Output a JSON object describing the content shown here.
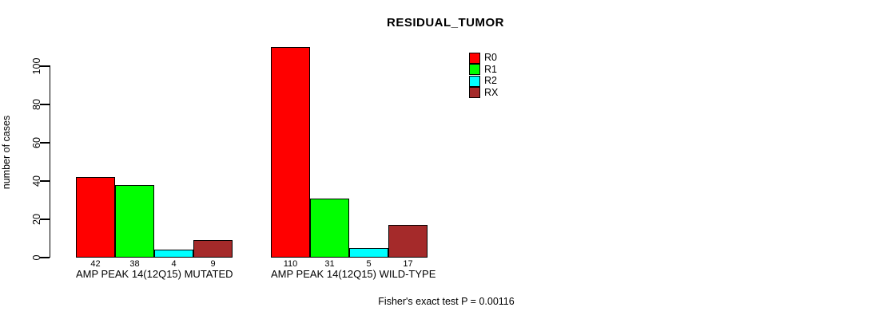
{
  "chart_data": {
    "type": "bar",
    "title": "RESIDUAL_TUMOR",
    "ylabel": "number of cases",
    "xlabel": "",
    "ylim": [
      0,
      110
    ],
    "yticks": [
      0,
      20,
      40,
      60,
      80,
      100
    ],
    "grid": false,
    "legend_position": "top-right",
    "categories": [
      "AMP PEAK 14(12Q15) MUTATED",
      "AMP PEAK 14(12Q15) WILD-TYPE"
    ],
    "series": [
      {
        "name": "R0",
        "color": "#ff0000",
        "values": [
          42,
          110
        ]
      },
      {
        "name": "R1",
        "color": "#00ff00",
        "values": [
          38,
          31
        ]
      },
      {
        "name": "R2",
        "color": "#00ffff",
        "values": [
          4,
          5
        ]
      },
      {
        "name": "RX",
        "color": "#a52a2a",
        "values": [
          9,
          17
        ]
      }
    ],
    "bar_value_labels": [
      [
        42,
        38,
        4,
        9
      ],
      [
        110,
        31,
        5,
        17
      ]
    ],
    "annotation": "Fisher's exact test P = 0.00116"
  }
}
